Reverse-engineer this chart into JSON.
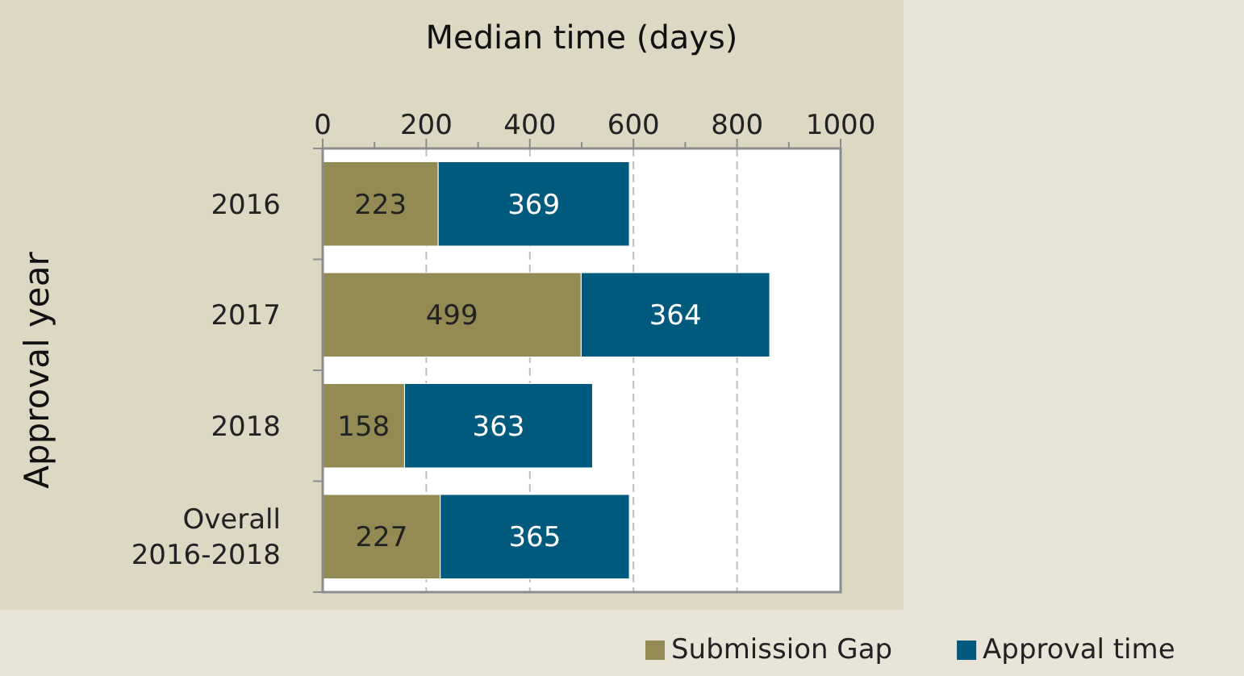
{
  "chart_data": {
    "type": "bar",
    "orientation": "horizontal",
    "stacked": true,
    "xlabel": "Median time (days)",
    "ylabel": "Approval year",
    "categories": [
      "2016",
      "2017",
      "2018",
      "Overall 2016-2018"
    ],
    "series": [
      {
        "name": "Submission Gap",
        "color": "#948a54",
        "values": [
          223,
          499,
          158,
          227
        ]
      },
      {
        "name": "Approval time",
        "color": "#005a7d",
        "values": [
          369,
          364,
          363,
          365
        ]
      }
    ],
    "xlim": [
      0,
      1000
    ],
    "xticks": [
      0,
      200,
      400,
      600,
      800,
      1000
    ],
    "grid": "x",
    "data_labels": true,
    "legend": "bottom"
  }
}
